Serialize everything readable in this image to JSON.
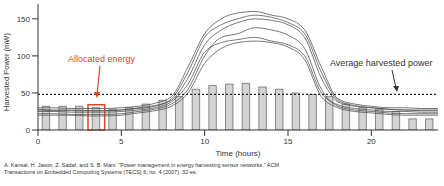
{
  "chart_data": {
    "type": "line",
    "x_label": "Time (hours)",
    "y_label": "Harvested Power (mW)",
    "xlim": [
      0,
      24
    ],
    "xticks": [
      0,
      5,
      10,
      15,
      20
    ],
    "ylim": [
      0,
      170
    ],
    "yticks": [
      0,
      50,
      100,
      150
    ],
    "x": [
      0,
      1,
      2,
      3,
      4,
      5,
      6,
      7,
      8,
      9,
      10,
      11,
      12,
      13,
      14,
      15,
      16,
      17,
      18,
      19,
      20,
      21,
      22,
      23,
      24
    ],
    "series": [
      {
        "color": "#555555",
        "values": [
          28,
          27,
          27,
          26,
          26,
          27,
          30,
          33,
          40,
          70,
          115,
          135,
          145,
          150,
          148,
          142,
          125,
          70,
          38,
          32,
          30,
          28,
          27,
          26,
          26
        ]
      },
      {
        "color": "#555555",
        "values": [
          22,
          22,
          21,
          21,
          21,
          22,
          25,
          28,
          35,
          55,
          100,
          125,
          130,
          138,
          135,
          128,
          110,
          55,
          32,
          27,
          25,
          23,
          22,
          22,
          22
        ]
      },
      {
        "color": "#555555",
        "values": [
          30,
          30,
          29,
          29,
          29,
          30,
          32,
          36,
          45,
          85,
          130,
          150,
          158,
          160,
          155,
          150,
          135,
          85,
          42,
          35,
          32,
          30,
          30,
          29,
          29
        ]
      },
      {
        "color": "#555555",
        "values": [
          25,
          25,
          24,
          24,
          24,
          25,
          27,
          30,
          38,
          62,
          105,
          118,
          122,
          125,
          120,
          115,
          100,
          50,
          34,
          29,
          27,
          25,
          25,
          24,
          24
        ]
      },
      {
        "color": "#555555",
        "values": [
          20,
          20,
          20,
          19,
          19,
          20,
          23,
          26,
          32,
          50,
          90,
          110,
          118,
          120,
          118,
          112,
          95,
          45,
          30,
          25,
          23,
          21,
          20,
          20,
          20
        ]
      },
      {
        "color": "#555555",
        "values": [
          27,
          26,
          26,
          26,
          26,
          27,
          29,
          32,
          42,
          78,
          125,
          142,
          150,
          155,
          152,
          145,
          130,
          78,
          40,
          33,
          30,
          28,
          27,
          27,
          27
        ]
      }
    ],
    "bars": {
      "type": "bar",
      "color": "#d4d4d4",
      "x": [
        0.5,
        1.5,
        2.5,
        3.5,
        4.5,
        5.5,
        6.5,
        7.5,
        8.5,
        9.5,
        10.5,
        11.5,
        12.5,
        13.5,
        14.5,
        15.5,
        16.5,
        17.5,
        18.5,
        19.5,
        20.5,
        21.5,
        22.5,
        23.5
      ],
      "values": [
        32,
        32,
        32,
        30,
        28,
        30,
        35,
        40,
        45,
        55,
        60,
        62,
        63,
        58,
        55,
        50,
        48,
        45,
        35,
        30,
        28,
        25,
        15,
        15
      ]
    },
    "average": 48,
    "line_style": "dotted",
    "annotations": [
      {
        "text": "Allocated energy",
        "color": "#e0452a"
      },
      {
        "text": "Average harvested power",
        "color": "#333333"
      }
    ],
    "citation": "A. Kansal, H. Jason, Z. Sadaf, and S. B. Mani. \"Power management in energy harvesting sensor networks.\" ACM Transactions on Embedded Computing Systems (TECS) 6, no. 4 (2007): 32-es."
  }
}
